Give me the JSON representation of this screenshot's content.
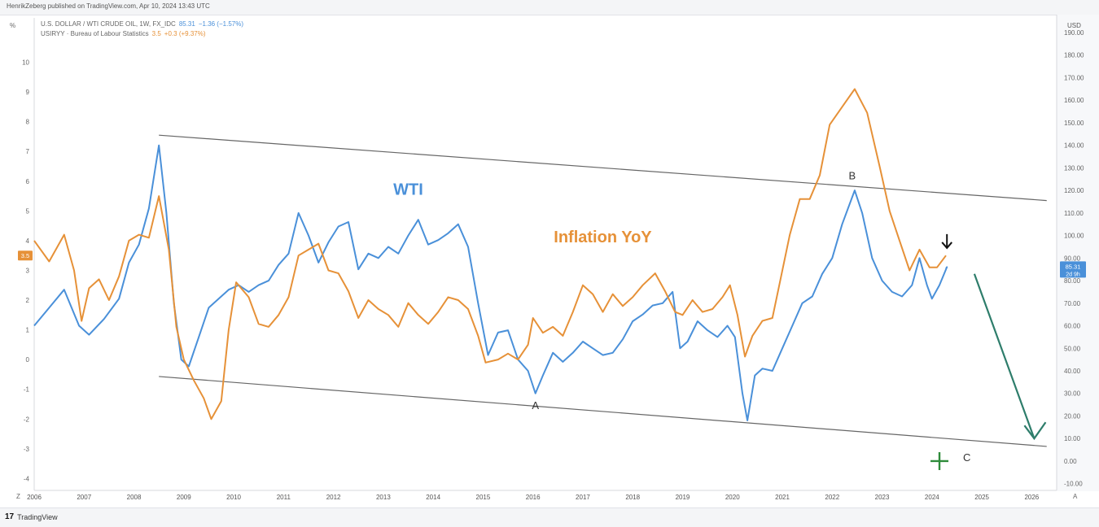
{
  "header": {
    "published_text": "HenrikZeberg published on TradingView.com, Apr 10, 2024 13:43 UTC"
  },
  "legend": {
    "wti": {
      "name": "U.S. DOLLAR / WTI CRUDE OIL, 1W, FX_IDC",
      "value": "85.31",
      "change": "−1.36 (−1.57%)"
    },
    "cpi": {
      "name": "USIRYY · Bureau of Labour Statistics",
      "value": "3.5",
      "change": "+0.3 (+9.37%)"
    }
  },
  "axes": {
    "left_unit": "%",
    "right_unit": "USD",
    "corner_left": "Z",
    "corner_right": "A"
  },
  "footer": {
    "brand": "TradingView"
  },
  "colors": {
    "wti": "#4a90d9",
    "inflation": "#e69138",
    "channel": "#666666",
    "projection": "#2e7d6b"
  },
  "chart_data": {
    "type": "line",
    "x_axis": {
      "range": [
        2006.0,
        2026.5
      ],
      "ticks": [
        "2006",
        "2007",
        "2008",
        "2009",
        "2010",
        "2011",
        "2012",
        "2013",
        "2014",
        "2015",
        "2016",
        "2017",
        "2018",
        "2019",
        "2020",
        "2021",
        "2022",
        "2023",
        "2024",
        "2025",
        "2026"
      ]
    },
    "left_axis": {
      "unit": "%",
      "range": [
        -4.4,
        11.0
      ],
      "ticks": [
        "-4",
        "-3",
        "-2",
        "-1",
        "0",
        "1",
        "2",
        "3",
        "4",
        "5",
        "6",
        "7",
        "8",
        "9",
        "10"
      ]
    },
    "right_axis": {
      "unit": "USD",
      "range": [
        -13.0,
        190.0
      ],
      "ticks": [
        "-10.00",
        "0.00",
        "10.00",
        "20.00",
        "30.00",
        "40.00",
        "50.00",
        "60.00",
        "70.00",
        "80.00",
        "90.00",
        "100.00",
        "110.00",
        "120.00",
        "130.00",
        "140.00",
        "150.00",
        "160.00",
        "170.00",
        "180.00",
        "190.00"
      ]
    },
    "series": [
      {
        "name": "U.S. DOLLAR / WTI CRUDE OIL",
        "axis": "right",
        "points": [
          [
            2006.0,
            60
          ],
          [
            2006.3,
            68
          ],
          [
            2006.6,
            76
          ],
          [
            2006.9,
            60
          ],
          [
            2007.1,
            56
          ],
          [
            2007.4,
            63
          ],
          [
            2007.7,
            72
          ],
          [
            2007.9,
            88
          ],
          [
            2008.1,
            96
          ],
          [
            2008.3,
            112
          ],
          [
            2008.5,
            140
          ],
          [
            2008.65,
            110
          ],
          [
            2008.8,
            70
          ],
          [
            2008.95,
            45
          ],
          [
            2009.1,
            42
          ],
          [
            2009.3,
            55
          ],
          [
            2009.5,
            68
          ],
          [
            2009.7,
            72
          ],
          [
            2009.9,
            76
          ],
          [
            2010.1,
            78
          ],
          [
            2010.3,
            75
          ],
          [
            2010.5,
            78
          ],
          [
            2010.7,
            80
          ],
          [
            2010.9,
            87
          ],
          [
            2011.1,
            92
          ],
          [
            2011.3,
            110
          ],
          [
            2011.5,
            100
          ],
          [
            2011.7,
            88
          ],
          [
            2011.9,
            97
          ],
          [
            2012.1,
            104
          ],
          [
            2012.3,
            106
          ],
          [
            2012.5,
            85
          ],
          [
            2012.7,
            92
          ],
          [
            2012.9,
            90
          ],
          [
            2013.1,
            95
          ],
          [
            2013.3,
            92
          ],
          [
            2013.5,
            100
          ],
          [
            2013.7,
            107
          ],
          [
            2013.9,
            96
          ],
          [
            2014.1,
            98
          ],
          [
            2014.3,
            101
          ],
          [
            2014.5,
            105
          ],
          [
            2014.7,
            95
          ],
          [
            2014.9,
            70
          ],
          [
            2015.1,
            47
          ],
          [
            2015.3,
            57
          ],
          [
            2015.5,
            58
          ],
          [
            2015.7,
            45
          ],
          [
            2015.9,
            40
          ],
          [
            2016.05,
            30
          ],
          [
            2016.2,
            38
          ],
          [
            2016.4,
            48
          ],
          [
            2016.6,
            44
          ],
          [
            2016.8,
            48
          ],
          [
            2017.0,
            53
          ],
          [
            2017.2,
            50
          ],
          [
            2017.4,
            47
          ],
          [
            2017.6,
            48
          ],
          [
            2017.8,
            54
          ],
          [
            2018.0,
            62
          ],
          [
            2018.2,
            65
          ],
          [
            2018.4,
            69
          ],
          [
            2018.6,
            70
          ],
          [
            2018.8,
            75
          ],
          [
            2018.95,
            50
          ],
          [
            2019.1,
            53
          ],
          [
            2019.3,
            62
          ],
          [
            2019.5,
            58
          ],
          [
            2019.7,
            55
          ],
          [
            2019.9,
            60
          ],
          [
            2020.05,
            55
          ],
          [
            2020.2,
            30
          ],
          [
            2020.3,
            18
          ],
          [
            2020.45,
            38
          ],
          [
            2020.6,
            41
          ],
          [
            2020.8,
            40
          ],
          [
            2021.0,
            50
          ],
          [
            2021.2,
            60
          ],
          [
            2021.4,
            70
          ],
          [
            2021.6,
            73
          ],
          [
            2021.8,
            83
          ],
          [
            2022.0,
            90
          ],
          [
            2022.2,
            105
          ],
          [
            2022.45,
            120
          ],
          [
            2022.6,
            110
          ],
          [
            2022.8,
            90
          ],
          [
            2023.0,
            80
          ],
          [
            2023.2,
            75
          ],
          [
            2023.4,
            73
          ],
          [
            2023.6,
            78
          ],
          [
            2023.75,
            90
          ],
          [
            2023.9,
            78
          ],
          [
            2024.0,
            72
          ],
          [
            2024.15,
            78
          ],
          [
            2024.3,
            86
          ],
          [
            2024.28,
            85.31
          ]
        ]
      },
      {
        "name": "USIRYY",
        "axis": "left",
        "points": [
          [
            2006.0,
            4.0
          ],
          [
            2006.3,
            3.3
          ],
          [
            2006.6,
            4.2
          ],
          [
            2006.8,
            3.0
          ],
          [
            2006.95,
            1.3
          ],
          [
            2007.1,
            2.4
          ],
          [
            2007.3,
            2.7
          ],
          [
            2007.5,
            2.0
          ],
          [
            2007.7,
            2.8
          ],
          [
            2007.9,
            4.0
          ],
          [
            2008.1,
            4.2
          ],
          [
            2008.3,
            4.1
          ],
          [
            2008.5,
            5.5
          ],
          [
            2008.7,
            3.7
          ],
          [
            2008.85,
            1.1
          ],
          [
            2009.0,
            0.0
          ],
          [
            2009.2,
            -0.7
          ],
          [
            2009.4,
            -1.3
          ],
          [
            2009.55,
            -2.0
          ],
          [
            2009.75,
            -1.4
          ],
          [
            2009.9,
            1.0
          ],
          [
            2010.05,
            2.6
          ],
          [
            2010.3,
            2.1
          ],
          [
            2010.5,
            1.2
          ],
          [
            2010.7,
            1.1
          ],
          [
            2010.9,
            1.5
          ],
          [
            2011.1,
            2.1
          ],
          [
            2011.3,
            3.5
          ],
          [
            2011.5,
            3.7
          ],
          [
            2011.7,
            3.9
          ],
          [
            2011.9,
            3.0
          ],
          [
            2012.1,
            2.9
          ],
          [
            2012.3,
            2.3
          ],
          [
            2012.5,
            1.4
          ],
          [
            2012.7,
            2.0
          ],
          [
            2012.9,
            1.7
          ],
          [
            2013.1,
            1.5
          ],
          [
            2013.3,
            1.1
          ],
          [
            2013.5,
            1.9
          ],
          [
            2013.7,
            1.5
          ],
          [
            2013.9,
            1.2
          ],
          [
            2014.1,
            1.6
          ],
          [
            2014.3,
            2.1
          ],
          [
            2014.5,
            2.0
          ],
          [
            2014.7,
            1.7
          ],
          [
            2014.9,
            0.8
          ],
          [
            2015.05,
            -0.1
          ],
          [
            2015.3,
            0.0
          ],
          [
            2015.5,
            0.2
          ],
          [
            2015.7,
            0.0
          ],
          [
            2015.9,
            0.5
          ],
          [
            2016.0,
            1.4
          ],
          [
            2016.2,
            0.9
          ],
          [
            2016.4,
            1.1
          ],
          [
            2016.6,
            0.8
          ],
          [
            2016.8,
            1.6
          ],
          [
            2017.0,
            2.5
          ],
          [
            2017.2,
            2.2
          ],
          [
            2017.4,
            1.6
          ],
          [
            2017.6,
            2.2
          ],
          [
            2017.8,
            1.8
          ],
          [
            2018.0,
            2.1
          ],
          [
            2018.2,
            2.5
          ],
          [
            2018.45,
            2.9
          ],
          [
            2018.65,
            2.3
          ],
          [
            2018.85,
            1.6
          ],
          [
            2019.0,
            1.5
          ],
          [
            2019.2,
            2.0
          ],
          [
            2019.4,
            1.6
          ],
          [
            2019.6,
            1.7
          ],
          [
            2019.8,
            2.1
          ],
          [
            2019.95,
            2.5
          ],
          [
            2020.1,
            1.5
          ],
          [
            2020.25,
            0.1
          ],
          [
            2020.4,
            0.8
          ],
          [
            2020.6,
            1.3
          ],
          [
            2020.8,
            1.4
          ],
          [
            2020.95,
            2.6
          ],
          [
            2021.15,
            4.2
          ],
          [
            2021.35,
            5.4
          ],
          [
            2021.55,
            5.4
          ],
          [
            2021.75,
            6.2
          ],
          [
            2021.95,
            7.9
          ],
          [
            2022.2,
            8.5
          ],
          [
            2022.45,
            9.1
          ],
          [
            2022.7,
            8.3
          ],
          [
            2022.95,
            6.5
          ],
          [
            2023.15,
            5.0
          ],
          [
            2023.35,
            4.0
          ],
          [
            2023.55,
            3.0
          ],
          [
            2023.75,
            3.7
          ],
          [
            2023.95,
            3.1
          ],
          [
            2024.1,
            3.1
          ],
          [
            2024.28,
            3.5
          ]
        ]
      }
    ],
    "annotations": [
      {
        "text": "WTI",
        "x": 2013.5,
        "y_right": 118,
        "color": "#4a90d9"
      },
      {
        "text": "Inflation YoY",
        "x": 2017.4,
        "y_right": 97,
        "color": "#e69138"
      },
      {
        "text": "A",
        "x": 2016.05,
        "y_right": 23
      },
      {
        "text": "B",
        "x": 2022.4,
        "y_right": 125
      },
      {
        "text": "C",
        "x": 2024.7,
        "y_right": 0
      }
    ],
    "channel": {
      "upper": [
        [
          2008.5,
          144.5
        ],
        [
          2026.3,
          115.5
        ]
      ],
      "lower": [
        [
          2008.5,
          37.5
        ],
        [
          2026.3,
          6.5
        ]
      ]
    },
    "projection_arrow": [
      [
        2024.85,
        83
      ],
      [
        2026.05,
        10
      ]
    ],
    "last_values": {
      "wti": "85.31",
      "wti_countdown": "2d 9h",
      "cpi": "3.5"
    }
  }
}
